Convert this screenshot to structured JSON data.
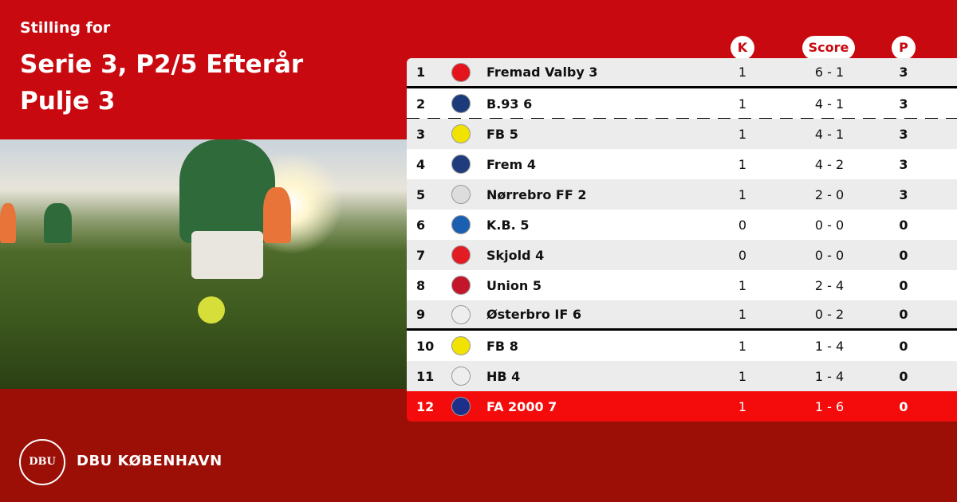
{
  "header": {
    "subtitle": "Stilling for",
    "title_line1": "Serie 3, P2/5 Efterår",
    "title_line2": "Pulje 3"
  },
  "columns": {
    "k": "K",
    "score": "Score",
    "p": "P"
  },
  "rows": [
    {
      "rank": "1",
      "team": "Fremad Valby 3",
      "k": "1",
      "score": "6 - 1",
      "p": "3",
      "logo_color": "#e3141b"
    },
    {
      "rank": "2",
      "team": "B.93 6",
      "k": "1",
      "score": "4 - 1",
      "p": "3",
      "logo_color": "#1c3b7a"
    },
    {
      "rank": "3",
      "team": "FB 5",
      "k": "1",
      "score": "4 - 1",
      "p": "3",
      "logo_color": "#f2e200"
    },
    {
      "rank": "4",
      "team": "Frem 4",
      "k": "1",
      "score": "4 - 2",
      "p": "3",
      "logo_color": "#1f3c7c"
    },
    {
      "rank": "5",
      "team": "Nørrebro FF 2",
      "k": "1",
      "score": "2 - 0",
      "p": "3",
      "logo_color": "#dddddd"
    },
    {
      "rank": "6",
      "team": "K.B. 5",
      "k": "0",
      "score": "0 - 0",
      "p": "0",
      "logo_color": "#1b5fb0"
    },
    {
      "rank": "7",
      "team": "Skjold 4",
      "k": "0",
      "score": "0 - 0",
      "p": "0",
      "logo_color": "#e31b23"
    },
    {
      "rank": "8",
      "team": "Union 5",
      "k": "1",
      "score": "2 - 4",
      "p": "0",
      "logo_color": "#c4162b"
    },
    {
      "rank": "9",
      "team": "Østerbro IF 6",
      "k": "1",
      "score": "0 - 2",
      "p": "0",
      "logo_color": "#eeeeee"
    },
    {
      "rank": "10",
      "team": "FB 8",
      "k": "1",
      "score": "1 - 4",
      "p": "0",
      "logo_color": "#f2e200"
    },
    {
      "rank": "11",
      "team": "HB 4",
      "k": "1",
      "score": "1 - 4",
      "p": "0",
      "logo_color": "#eeeeee"
    },
    {
      "rank": "12",
      "team": "FA 2000 7",
      "k": "1",
      "score": "1 - 6",
      "p": "0",
      "logo_color": "#1c2f8a"
    }
  ],
  "highlighted_rank": "12",
  "footer": {
    "brand": "DBU KØBENHAVN",
    "seal_text": "DBU"
  },
  "colors": {
    "primary": "#c8090f",
    "footer": "#9b0f06",
    "highlight": "#f40b0b"
  }
}
